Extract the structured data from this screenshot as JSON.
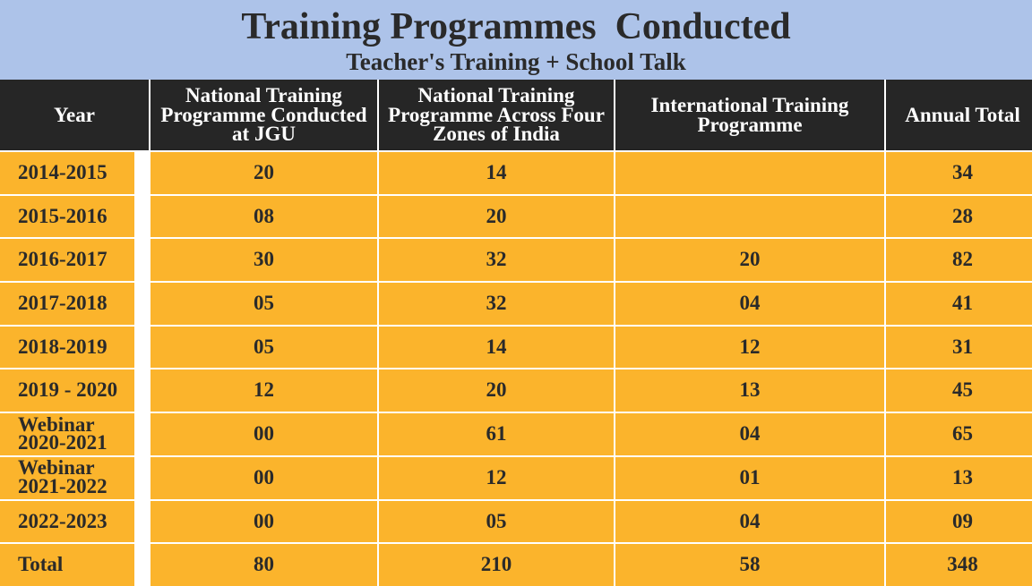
{
  "header": {
    "title": "Training Programmes  Conducted",
    "subtitle": "Teacher's Training + School Talk"
  },
  "table": {
    "columns": [
      "Year",
      "National Training Programme Conducted at JGU",
      "National Training Programme Across Four Zones of India",
      "International Training Programme",
      "Annual Total"
    ],
    "rows": [
      [
        "2014-2015",
        "20",
        "14",
        null,
        "34"
      ],
      [
        "2015-2016",
        "08",
        "20",
        null,
        "28"
      ],
      [
        "2016-2017",
        "30",
        "32",
        "20",
        "82"
      ],
      [
        "2017-2018",
        "05",
        "32",
        "04",
        "41"
      ],
      [
        "2018-2019",
        "05",
        "14",
        "12",
        "31"
      ],
      [
        "2019 - 2020",
        "12",
        "20",
        "13",
        "45"
      ],
      [
        "Webinar 2020-2021",
        "00",
        "61",
        "04",
        "65"
      ],
      [
        "Webinar 2021-2022",
        "00",
        "12",
        "01",
        "13"
      ],
      [
        "2022-2023",
        "00",
        "05",
        "04",
        "09"
      ],
      [
        "Total",
        "80",
        "210",
        "58",
        "348"
      ]
    ]
  }
}
